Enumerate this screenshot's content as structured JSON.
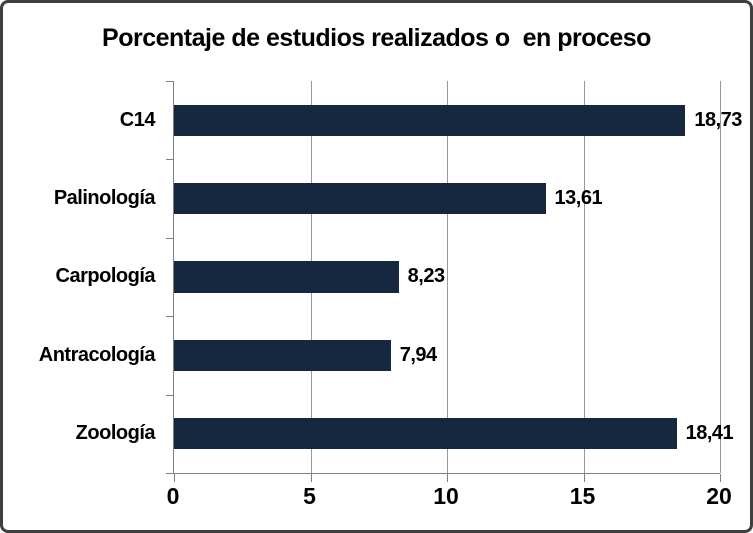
{
  "chart_data": {
    "type": "bar",
    "orientation": "horizontal",
    "title": "Porcentaje de estudios realizados o  en proceso",
    "categories": [
      "C14",
      "Palinología",
      "Carpología",
      "Antracología",
      "Zoología"
    ],
    "values": [
      18.73,
      13.61,
      8.23,
      7.94,
      18.41
    ],
    "value_labels": [
      "18,73",
      "13,61",
      "8,23",
      "7,94",
      "18,41"
    ],
    "x_ticks": [
      0,
      5,
      10,
      15,
      20
    ],
    "x_tick_labels": [
      "0",
      "5",
      "10",
      "15",
      "20"
    ],
    "xlim": [
      0,
      20
    ],
    "xlabel": "",
    "ylabel": "",
    "grid": "vertical-gridlines",
    "legend": "none",
    "colors": {
      "bar": "#152840",
      "gridline": "#999999",
      "axis": "#808080",
      "text": "#000000",
      "background": "#FFFFFF",
      "frame_border": "#3F3F3F"
    }
  }
}
